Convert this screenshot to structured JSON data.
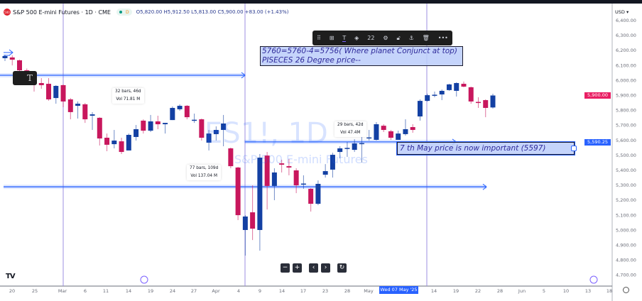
{
  "header": {
    "logo_text": "500",
    "symbol_title": "S&P 500 E-mini Futures · 1D · CME",
    "badge_d": "D",
    "ohlc": "O5,820.00 H5,912.50 L5,813.00 C5,900.00 +83.00 (+1.43%)"
  },
  "currency": "USD",
  "toolbar": {
    "icons": [
      "drag-handle-icon",
      "template-icon",
      "text-icon",
      "fill-icon",
      "settings-icon",
      "lock-icon",
      "anchor-icon",
      "trash-icon",
      "more-icon"
    ],
    "font_size": "22"
  },
  "watermark": {
    "symbol": "ES1!, 1D",
    "name": "S&P 500 E-mini Futures"
  },
  "notes": {
    "top_line1": "5760=5760-4=5756( Where planet Conjunct at top)",
    "top_line2": "PISECES 26 Degree price--",
    "may7": "7 th May price is now important (5597)"
  },
  "measures": [
    {
      "bars": "32 bars, 46d",
      "vol": "Vol 71.81 M"
    },
    {
      "bars": "77 bars, 109d",
      "vol": "Vol 137.04 M"
    },
    {
      "bars": "29 bars, 42d",
      "vol": "Vol 47.4M"
    }
  ],
  "text_tool_label": "T",
  "price_tags": {
    "last": "5,900.00",
    "line": "5,590.25",
    "last_color": "#e91e63",
    "line_color": "#2962ff"
  },
  "nav_buttons": [
    "−",
    "+",
    "‹",
    "›",
    "↻"
  ],
  "x_selected": "Wed 07 May '25",
  "tv_logo": "TV",
  "colors": {
    "up": "#1340a3",
    "down": "#c8175d",
    "line": "#2962ff",
    "vline": "#9c8fe0"
  },
  "chart_data": {
    "type": "candlestick",
    "title": "S&P 500 E-mini Futures · 1D · CME",
    "y_ticks": [
      6400,
      6300,
      6200,
      6100,
      6000,
      5900,
      5800,
      5700,
      5600,
      5500,
      5400,
      5300,
      5200,
      5100,
      5000,
      4900,
      4800,
      4700
    ],
    "y_tick_labels": [
      "6,400.00",
      "6,300.00",
      "6,200.00",
      "6,100.00",
      "6,000.00",
      "5,900.00",
      "5,800.00",
      "5,700.00",
      "5,600.00",
      "5,500.00",
      "5,400.00",
      "5,300.00",
      "5,200.00",
      "5,100.00",
      "5,000.00",
      "4,900.00",
      "4,800.00",
      "4,700.00"
    ],
    "x_tick_labels": [
      "20",
      "25",
      "Mar",
      "6",
      "11",
      "14",
      "19",
      "24",
      "27",
      "Apr",
      "4",
      "9",
      "14",
      "17",
      "23",
      "28",
      "May",
      "14",
      "19",
      "22",
      "28",
      "Jun",
      "5",
      "10",
      "13",
      "18"
    ],
    "horizontal_levels": [
      6035,
      5590.25,
      5290
    ],
    "ohlc": [
      [
        6149,
        6172,
        6130,
        6163
      ],
      [
        6154,
        6168,
        6101,
        6139
      ],
      [
        6135,
        6139,
        6060,
        6068
      ],
      [
        6068,
        6080,
        6010,
        6030
      ],
      [
        6007,
        6026,
        5926,
        5993
      ],
      [
        5983,
        6016,
        5945,
        5969
      ],
      [
        5978,
        6016,
        5865,
        5874
      ],
      [
        5883,
        5969,
        5845,
        5964
      ],
      [
        5969,
        5974,
        5822,
        5860
      ],
      [
        5874,
        5883,
        5741,
        5789
      ],
      [
        5831,
        5860,
        5746,
        5845
      ],
      [
        5841,
        5850,
        5717,
        5741
      ],
      [
        5765,
        5789,
        5670,
        5774
      ],
      [
        5751,
        5755,
        5566,
        5613
      ],
      [
        5618,
        5646,
        5528,
        5571
      ],
      [
        5575,
        5670,
        5547,
        5599
      ],
      [
        5594,
        5618,
        5509,
        5523
      ],
      [
        5533,
        5646,
        5533,
        5637
      ],
      [
        5623,
        5703,
        5599,
        5675
      ],
      [
        5732,
        5741,
        5646,
        5665
      ],
      [
        5665,
        5770,
        5656,
        5727
      ],
      [
        5727,
        5765,
        5675,
        5708
      ],
      [
        5708,
        5717,
        5646,
        5717
      ],
      [
        5736,
        5827,
        5736,
        5817
      ],
      [
        5808,
        5841,
        5798,
        5831
      ],
      [
        5831,
        5836,
        5741,
        5755
      ],
      [
        5734,
        5779,
        5717,
        5738
      ],
      [
        5741,
        5746,
        5599,
        5618
      ],
      [
        5585,
        5670,
        5533,
        5646
      ],
      [
        5642,
        5694,
        5599,
        5670
      ],
      [
        5670,
        5770,
        5561,
        5713
      ],
      [
        5547,
        5552,
        5414,
        5428
      ],
      [
        5419,
        5424,
        5068,
        5101
      ],
      [
        5002,
        5101,
        4831,
        5092
      ],
      [
        5120,
        5300,
        4935,
        5011
      ],
      [
        5002,
        5509,
        4864,
        5485
      ],
      [
        5499,
        5523,
        5139,
        5296
      ],
      [
        5296,
        5414,
        5201,
        5386
      ],
      [
        5447,
        5471,
        5386,
        5438
      ],
      [
        5428,
        5476,
        5367,
        5419
      ],
      [
        5400,
        5414,
        5248,
        5300
      ],
      [
        5305,
        5367,
        5277,
        5312
      ],
      [
        5277,
        5282,
        5125,
        5177
      ],
      [
        5177,
        5333,
        5168,
        5310
      ],
      [
        5371,
        5442,
        5352,
        5395
      ],
      [
        5405,
        5518,
        5352,
        5504
      ],
      [
        5523,
        5561,
        5480,
        5547
      ],
      [
        5545,
        5589,
        5490,
        5550
      ],
      [
        5537,
        5608,
        5523,
        5580
      ],
      [
        5578,
        5661,
        5452,
        5582
      ],
      [
        5616,
        5670,
        5599,
        5620
      ],
      [
        5604,
        5722,
        5599,
        5708
      ],
      [
        5698,
        5708,
        5656,
        5670
      ],
      [
        5661,
        5670,
        5604,
        5618
      ],
      [
        5604,
        5665,
        5604,
        5646
      ],
      [
        5642,
        5741,
        5632,
        5675
      ],
      [
        5689,
        5708,
        5651,
        5670
      ],
      [
        5760,
        5874,
        5732,
        5864
      ],
      [
        5864,
        5912,
        5860,
        5902
      ],
      [
        5900,
        5926,
        5888,
        5905
      ],
      [
        5907,
        5940,
        5869,
        5931
      ],
      [
        5936,
        5978,
        5931,
        5974
      ],
      [
        5931,
        5988,
        5893,
        5983
      ],
      [
        5978,
        5993,
        5955,
        5959
      ],
      [
        5955,
        5959,
        5845,
        5860
      ],
      [
        5857,
        5888,
        5817,
        5853
      ],
      [
        5869,
        5874,
        5755,
        5817
      ],
      [
        5820,
        5912,
        5813,
        5900
      ]
    ]
  }
}
